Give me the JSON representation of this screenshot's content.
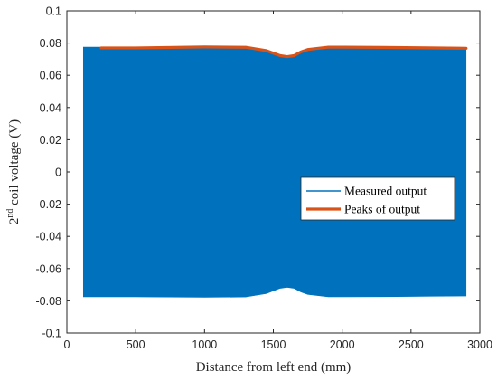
{
  "chart_data": {
    "type": "line",
    "title": "",
    "xlabel": "Distance from left end (mm)",
    "ylabel": {
      "prefix": "2",
      "superscript": "nd",
      "suffix": " coil voltage (V)"
    },
    "xlim": [
      0,
      3000
    ],
    "ylim": [
      -0.1,
      0.1
    ],
    "xticks": [
      0,
      500,
      1000,
      1500,
      2000,
      2500,
      3000
    ],
    "xtick_labels": [
      "0",
      "500",
      "1000",
      "1500",
      "2000",
      "2500",
      "3000"
    ],
    "yticks": [
      -0.1,
      -0.08,
      -0.06,
      -0.04,
      -0.02,
      0,
      0.02,
      0.04,
      0.06,
      0.08,
      0.1
    ],
    "ytick_labels": [
      "-0.1",
      "-0.08",
      "-0.06",
      "-0.04",
      "-0.02",
      "0",
      "0.02",
      "0.04",
      "0.06",
      "0.08",
      "0.1"
    ],
    "grid": false,
    "legend_position": "center-right",
    "series": [
      {
        "name": "Measured output",
        "color": "#0072BD",
        "style": "dense-oscillation-envelope",
        "x": [
          120,
          500,
          1000,
          1300,
          1450,
          1500,
          1550,
          1600,
          1650,
          1700,
          1750,
          1900,
          2300,
          2900
        ],
        "upper": [
          0.0775,
          0.0775,
          0.0778,
          0.0776,
          0.0755,
          0.0738,
          0.0722,
          0.0716,
          0.0722,
          0.0745,
          0.076,
          0.0775,
          0.0774,
          0.077
        ],
        "lower": [
          -0.0775,
          -0.0775,
          -0.0778,
          -0.0776,
          -0.0755,
          -0.0738,
          -0.0722,
          -0.0716,
          -0.0722,
          -0.0745,
          -0.076,
          -0.0775,
          -0.0774,
          -0.077
        ]
      },
      {
        "name": "Peaks of output",
        "color": "#D95319",
        "style": "line",
        "x": [
          250,
          500,
          1000,
          1300,
          1450,
          1500,
          1550,
          1600,
          1650,
          1700,
          1750,
          1900,
          2300,
          2900
        ],
        "y": [
          0.077,
          0.077,
          0.0776,
          0.0774,
          0.0753,
          0.0737,
          0.0722,
          0.0716,
          0.0722,
          0.0745,
          0.076,
          0.0775,
          0.0773,
          0.0768
        ]
      }
    ]
  }
}
